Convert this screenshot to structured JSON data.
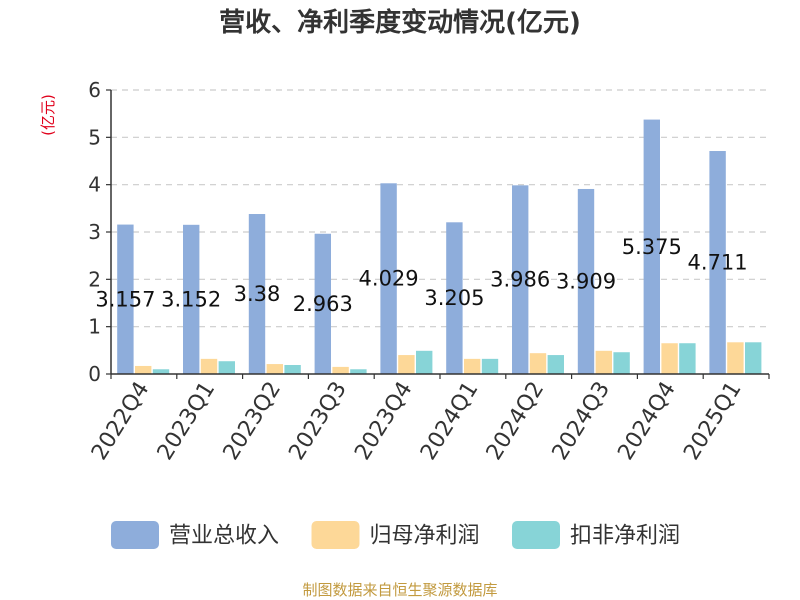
{
  "footer": "制图数据来自恒生聚源数据库",
  "chart_data": {
    "type": "bar",
    "title": "营收、净利季度变动情况(亿元)",
    "xlabel": "",
    "ylabel": "(亿元)",
    "ylim": [
      0,
      6
    ],
    "y_ticks": [
      0,
      1,
      2,
      3,
      4,
      5,
      6
    ],
    "grid": true,
    "legend_position": "bottom",
    "categories": [
      "2022Q4",
      "2023Q1",
      "2023Q2",
      "2023Q3",
      "2023Q4",
      "2024Q1",
      "2024Q2",
      "2024Q3",
      "2024Q4",
      "2025Q1"
    ],
    "series": [
      {
        "name": "营业总收入",
        "color": "#8eaddb",
        "data_labels": true,
        "values": [
          3.157,
          3.152,
          3.38,
          2.963,
          4.029,
          3.205,
          3.986,
          3.909,
          5.375,
          4.711
        ]
      },
      {
        "name": "归母净利润",
        "color": "#fdd898",
        "data_labels": false,
        "values": [
          0.17,
          0.32,
          0.21,
          0.15,
          0.4,
          0.32,
          0.44,
          0.49,
          0.65,
          0.67
        ]
      },
      {
        "name": "扣非净利润",
        "color": "#87d4d7",
        "data_labels": false,
        "values": [
          0.1,
          0.27,
          0.19,
          0.1,
          0.49,
          0.32,
          0.4,
          0.46,
          0.65,
          0.67
        ]
      }
    ]
  }
}
